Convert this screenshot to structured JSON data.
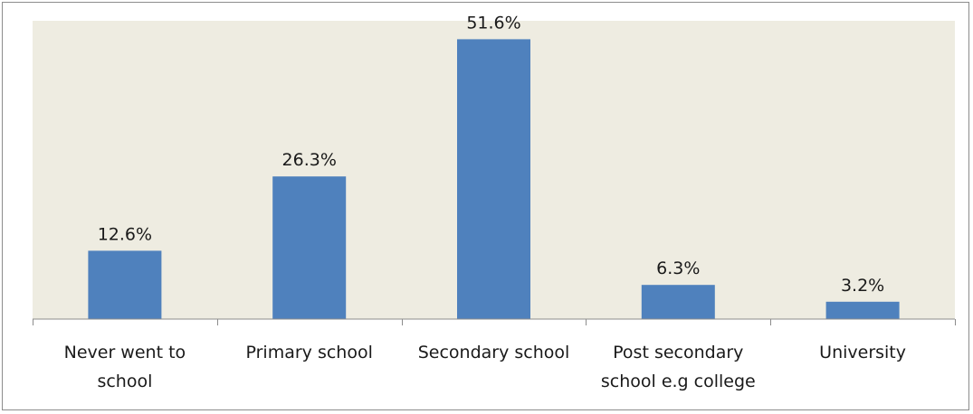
{
  "chart_data": {
    "type": "bar",
    "title": "",
    "xlabel": "",
    "ylabel": "",
    "categories": [
      "Never went to school",
      "Primary school",
      "Secondary school",
      "Post secondary school e.g college",
      "University"
    ],
    "category_lines": [
      [
        "Never went to",
        "school"
      ],
      [
        "Primary school"
      ],
      [
        "Secondary school"
      ],
      [
        "Post secondary",
        "school e.g college"
      ],
      [
        "University"
      ]
    ],
    "values": [
      12.6,
      26.3,
      51.6,
      6.3,
      3.2
    ],
    "data_labels": [
      "12.6%",
      "26.3%",
      "51.6%",
      "6.3%",
      "3.2%"
    ],
    "ylim": [
      0,
      55
    ],
    "grid": false,
    "legend": "none",
    "colors": {
      "bar": "#4f81bd",
      "plot_background": "#eeece1",
      "axis": "#8c8c8c"
    }
  }
}
